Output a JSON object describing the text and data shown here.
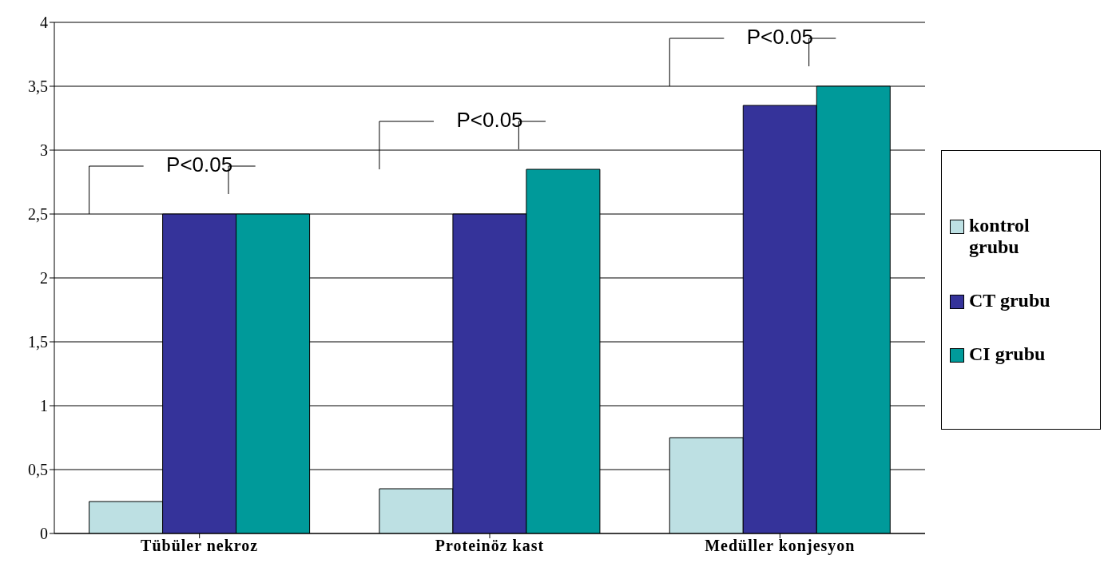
{
  "chart_data": {
    "type": "bar",
    "categories": [
      "Tübüler nekroz",
      "Proteinöz kast",
      "Medüller konjesyon"
    ],
    "series": [
      {
        "name": "kontrol grubu",
        "color": "#bde0e3",
        "values": [
          0.25,
          0.35,
          0.75
        ]
      },
      {
        "name": "CT grubu",
        "color": "#35339a",
        "values": [
          2.5,
          2.5,
          3.35
        ]
      },
      {
        "name": "CI grubu",
        "color": "#009a9a",
        "values": [
          2.5,
          2.85,
          3.5
        ]
      }
    ],
    "ylim": [
      0,
      4
    ],
    "yticks": [
      0,
      {
        "value": 0.5,
        "label": "0,5"
      },
      1,
      {
        "value": 1.5,
        "label": "1,5"
      },
      2,
      {
        "value": 2.5,
        "label": "2,5"
      },
      3,
      {
        "value": 3.5,
        "label": "3,5"
      },
      4
    ],
    "grid": "y",
    "legend": "right",
    "annotations": [
      "P<0.05",
      "P<0.05",
      "P<0.05"
    ]
  }
}
